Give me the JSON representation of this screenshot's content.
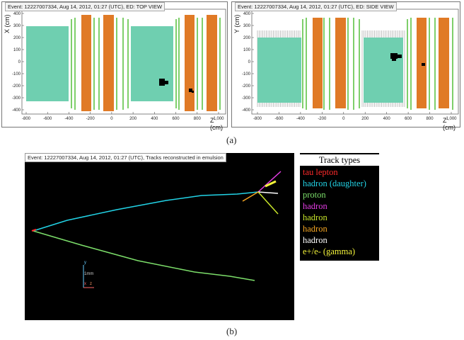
{
  "top_view": {
    "title": "Event: 12227007334, Aug 14, 2012, 01:27 (UTC), ED: TOP VIEW",
    "x_axis_label": "Z (cm)",
    "y_axis_label": "X (cm)",
    "x_ticks": [
      "-800",
      "-600",
      "-400",
      "-200",
      "0",
      "200",
      "400",
      "600",
      "800",
      "1,000"
    ],
    "y_ticks": [
      "400",
      "300",
      "200",
      "100",
      "0",
      "-100",
      "-200",
      "-300",
      "-400"
    ]
  },
  "side_view": {
    "title": "Event: 12227007334, Aug 14, 2012, 01:27 (UTC), ED: SIDE VIEW",
    "x_axis_label": "Z (cm)",
    "y_axis_label": "Y (cm)",
    "x_ticks": [
      "-800",
      "-600",
      "-400",
      "-200",
      "0",
      "200",
      "400",
      "600",
      "800",
      "1,000"
    ],
    "y_ticks": [
      "400",
      "300",
      "200",
      "100",
      "0",
      "-100",
      "-200",
      "-300",
      "-400"
    ]
  },
  "caption_a": "(a)",
  "caption_b": "(b)",
  "emulsion": {
    "title": "Event: 12227007334, Aug 14, 2012, 01:27 (UTC), Tracks reconstructed in emulsion",
    "scale_label": "1mm",
    "axis_y": "y",
    "axis_x": "x",
    "axis_z": "z"
  },
  "legend": {
    "title": "Track types",
    "items": [
      {
        "label": "tau lepton",
        "color": "#ff2a2a"
      },
      {
        "label": "hadron (daughter)",
        "color": "#22d3e6"
      },
      {
        "label": "proton",
        "color": "#7cde6a"
      },
      {
        "label": "hadron",
        "color": "#e33ce3"
      },
      {
        "label": "hadron",
        "color": "#c8e62a"
      },
      {
        "label": "hadron",
        "color": "#f5a623"
      },
      {
        "label": "hadron",
        "color": "#ffffff"
      },
      {
        "label": "e+/e- (gamma)",
        "color": "#f4f43a"
      }
    ]
  },
  "colors": {
    "target_fill": "#6fcfb0",
    "magnet_fill": "#e07a26",
    "tracker_plane": "#7ecf6a",
    "hits": "#000000"
  }
}
